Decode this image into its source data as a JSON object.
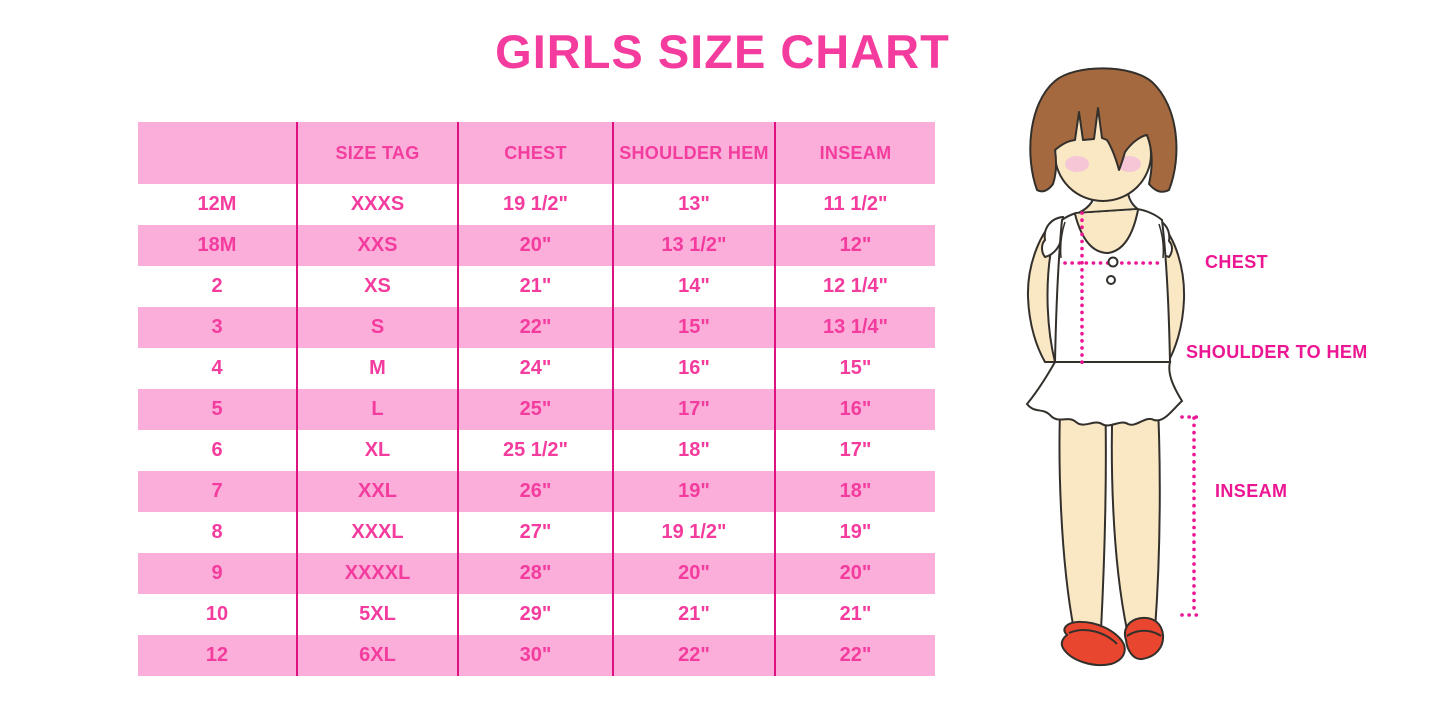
{
  "title": "GIRLS SIZE CHART",
  "chart_data": {
    "type": "table",
    "title": "GIRLS SIZE CHART",
    "columns": [
      "",
      "SIZE TAG",
      "CHEST",
      "SHOULDER HEM",
      "INSEAM"
    ],
    "rows": [
      [
        "12M",
        "XXXS",
        "19 1/2\"",
        "13\"",
        "11 1/2\""
      ],
      [
        "18M",
        "XXS",
        "20\"",
        "13 1/2\"",
        "12\""
      ],
      [
        "2",
        "XS",
        "21\"",
        "14\"",
        "12 1/4\""
      ],
      [
        "3",
        "S",
        "22\"",
        "15\"",
        "13 1/4\""
      ],
      [
        "4",
        "M",
        "24\"",
        "16\"",
        "15\""
      ],
      [
        "5",
        "L",
        "25\"",
        "17\"",
        "16\""
      ],
      [
        "6",
        "XL",
        "25 1/2\"",
        "18\"",
        "17\""
      ],
      [
        "7",
        "XXL",
        "26\"",
        "19\"",
        "18\""
      ],
      [
        "8",
        "XXXL",
        "27\"",
        "19 1/2\"",
        "19\""
      ],
      [
        "9",
        "XXXXL",
        "28\"",
        "20\"",
        "20\""
      ],
      [
        "10",
        "5XL",
        "29\"",
        "21\"",
        "21\""
      ],
      [
        "12",
        "6XL",
        "30\"",
        "22\"",
        "22\""
      ]
    ],
    "row_stripe_pattern": "white / pink alternating, header pink",
    "legend_position": "none",
    "grid": "vertical magenta column separators only"
  },
  "figure": {
    "description": "cartoon girl with brown bob hair, white ruffled sleeveless top, red mary-jane shoes, magenta dotted measurement guides",
    "labels": {
      "chest": "CHEST",
      "shoulder_to_hem": "SHOULDER TO HEM",
      "inseam": "INSEAM"
    }
  },
  "colors": {
    "accent_pink": "#F43C9E",
    "row_pink": "#FAAED9",
    "column_line_magenta": "#DD1180",
    "dotted_line_magenta": "#EC1592",
    "hair_brown": "#A5693F",
    "skin": "#FAE7C4",
    "blush": "#F6C6D6",
    "shoe_red": "#E94630"
  }
}
